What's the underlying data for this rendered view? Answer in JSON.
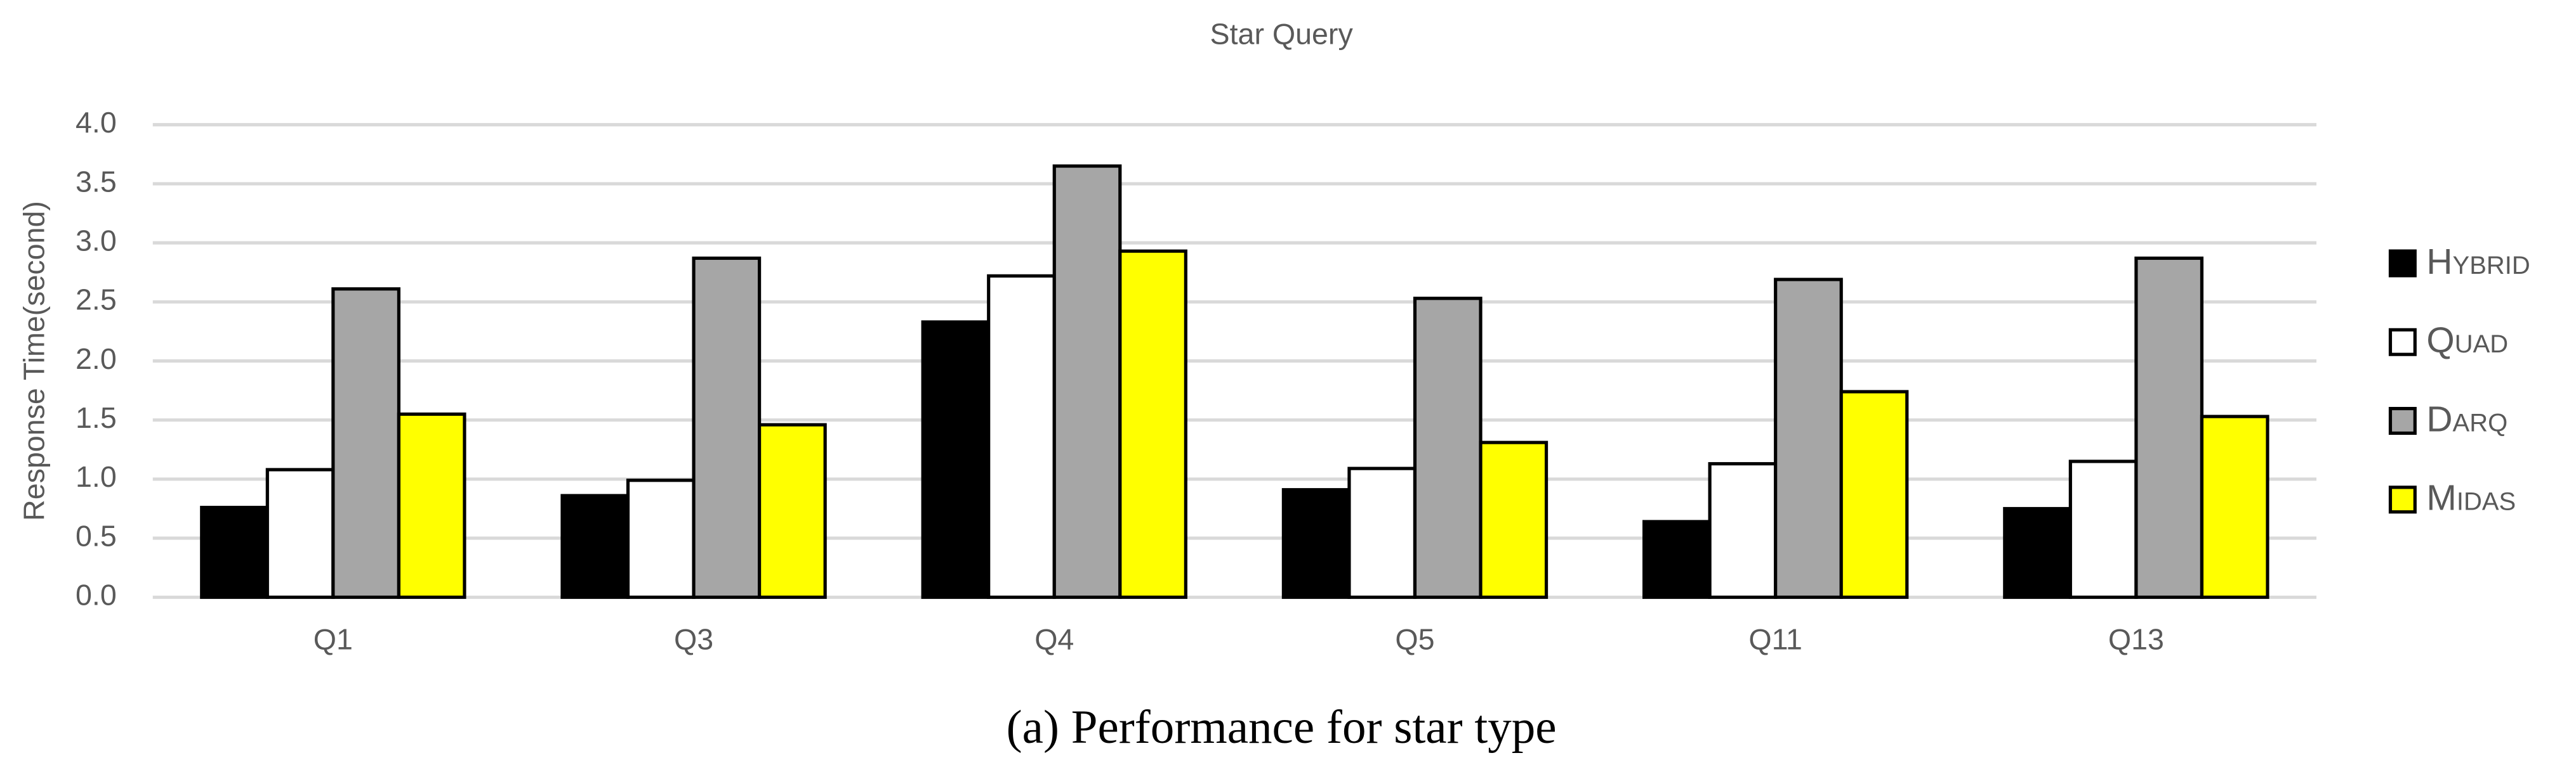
{
  "chart_data": {
    "type": "bar",
    "title": "Star Query",
    "y_label": "Response Time(second)",
    "caption": "(a) Performance for star type",
    "categories": [
      "Q1",
      "Q3",
      "Q4",
      "Q5",
      "Q11",
      "Q13"
    ],
    "series": [
      {
        "name": "Hybrid",
        "color": "#000000",
        "values": [
          0.76,
          0.86,
          2.33,
          0.91,
          0.64,
          0.75
        ]
      },
      {
        "name": "Quad",
        "color": "#ffffff",
        "values": [
          1.08,
          0.99,
          2.72,
          1.09,
          1.13,
          1.15
        ]
      },
      {
        "name": "Darq",
        "color": "#a6a6a6",
        "values": [
          2.61,
          2.87,
          3.65,
          2.53,
          2.69,
          2.87
        ]
      },
      {
        "name": "Midas",
        "color": "#ffff00",
        "values": [
          1.55,
          1.46,
          2.93,
          1.31,
          1.74,
          1.53
        ]
      }
    ],
    "ylim": [
      0,
      4
    ],
    "yticks": [
      {
        "value": 0,
        "label": "0.0"
      },
      {
        "value": 0.5,
        "label": "0.5"
      },
      {
        "value": 1,
        "label": "1.0"
      },
      {
        "value": 1.5,
        "label": "1.5"
      },
      {
        "value": 2,
        "label": "2.0"
      },
      {
        "value": 2.5,
        "label": "2.5"
      },
      {
        "value": 3,
        "label": "3.0"
      },
      {
        "value": 3.5,
        "label": "3.5"
      },
      {
        "value": 4,
        "label": "4.0"
      }
    ],
    "grid": true,
    "legend": "right"
  }
}
